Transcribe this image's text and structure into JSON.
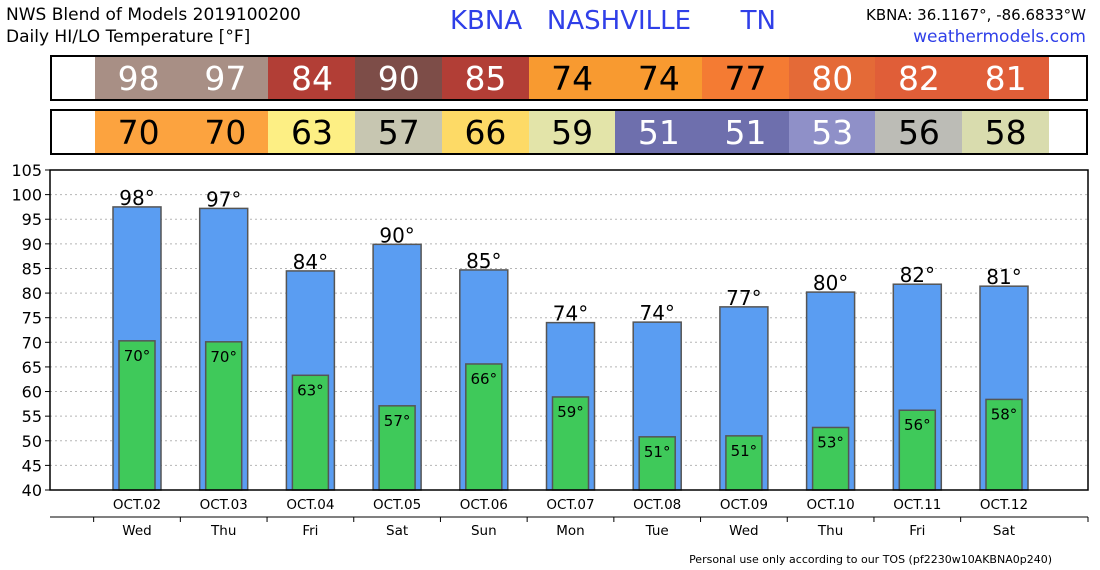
{
  "header": {
    "line1": "NWS Blend of Models 2019100200",
    "line2": "Daily HI/LO Temperature [°F]",
    "station": "KBNA   NASHVILLE      TN",
    "coords": "KBNA: 36.1167°, -86.6833°W",
    "site": "weathermodels.com"
  },
  "strips": {
    "hi": [
      {
        "value": "98",
        "bg": "#a88f85",
        "fg": "#ffffff"
      },
      {
        "value": "97",
        "bg": "#a88f85",
        "fg": "#ffffff"
      },
      {
        "value": "84",
        "bg": "#b23e36",
        "fg": "#ffffff"
      },
      {
        "value": "90",
        "bg": "#7d4d48",
        "fg": "#ffffff"
      },
      {
        "value": "85",
        "bg": "#b23e36",
        "fg": "#ffffff"
      },
      {
        "value": "74",
        "bg": "#f89a30",
        "fg": "#000000"
      },
      {
        "value": "74",
        "bg": "#f89a30",
        "fg": "#000000"
      },
      {
        "value": "77",
        "bg": "#f47b33",
        "fg": "#000000"
      },
      {
        "value": "80",
        "bg": "#e46a37",
        "fg": "#ffffff"
      },
      {
        "value": "82",
        "bg": "#e05e38",
        "fg": "#ffffff"
      },
      {
        "value": "81",
        "bg": "#e05e38",
        "fg": "#ffffff"
      }
    ],
    "lo": [
      {
        "value": "70",
        "bg": "#fca33f",
        "fg": "#000000"
      },
      {
        "value": "70",
        "bg": "#fca33f",
        "fg": "#000000"
      },
      {
        "value": "63",
        "bg": "#fdef84",
        "fg": "#000000"
      },
      {
        "value": "57",
        "bg": "#c7c6b1",
        "fg": "#000000"
      },
      {
        "value": "66",
        "bg": "#fdda66",
        "fg": "#000000"
      },
      {
        "value": "59",
        "bg": "#e3e4a9",
        "fg": "#000000"
      },
      {
        "value": "51",
        "bg": "#6e6fad",
        "fg": "#ffffff"
      },
      {
        "value": "51",
        "bg": "#6e6fad",
        "fg": "#ffffff"
      },
      {
        "value": "53",
        "bg": "#8f90c8",
        "fg": "#ffffff"
      },
      {
        "value": "56",
        "bg": "#bcbcb6",
        "fg": "#000000"
      },
      {
        "value": "58",
        "bg": "#d9dcae",
        "fg": "#000000"
      }
    ]
  },
  "chart_data": {
    "type": "bar",
    "categories": [
      "OCT.02",
      "OCT.03",
      "OCT.04",
      "OCT.05",
      "OCT.06",
      "OCT.07",
      "OCT.08",
      "OCT.09",
      "OCT.10",
      "OCT.11",
      "OCT.12"
    ],
    "weekdays": [
      "Wed",
      "Thu",
      "Fri",
      "Sat",
      "Sun",
      "Mon",
      "Tue",
      "Wed",
      "Thu",
      "Fri",
      "Sat"
    ],
    "series": [
      {
        "values": [
          97.5,
          97.2,
          84.5,
          89.9,
          84.7,
          74.0,
          74.1,
          77.2,
          80.2,
          81.8,
          81.4
        ],
        "labels": [
          "98°",
          "97°",
          "84°",
          "90°",
          "85°",
          "74°",
          "74°",
          "77°",
          "80°",
          "82°",
          "81°"
        ],
        "color": "#5a9df2"
      },
      {
        "values": [
          70.3,
          70.1,
          63.3,
          57.1,
          65.6,
          58.9,
          50.8,
          51.0,
          52.7,
          56.2,
          58.4
        ],
        "labels": [
          "70°",
          "70°",
          "63°",
          "57°",
          "66°",
          "59°",
          "51°",
          "51°",
          "53°",
          "56°",
          "58°"
        ],
        "color": "#3fc95a"
      }
    ],
    "ylim": [
      40,
      105
    ],
    "yticks": [
      40,
      45,
      50,
      55,
      60,
      65,
      70,
      75,
      80,
      85,
      90,
      95,
      100,
      105
    ],
    "grid": true
  },
  "footer": "Personal use only according to our TOS (pf2230w10AKBNA0p240)"
}
